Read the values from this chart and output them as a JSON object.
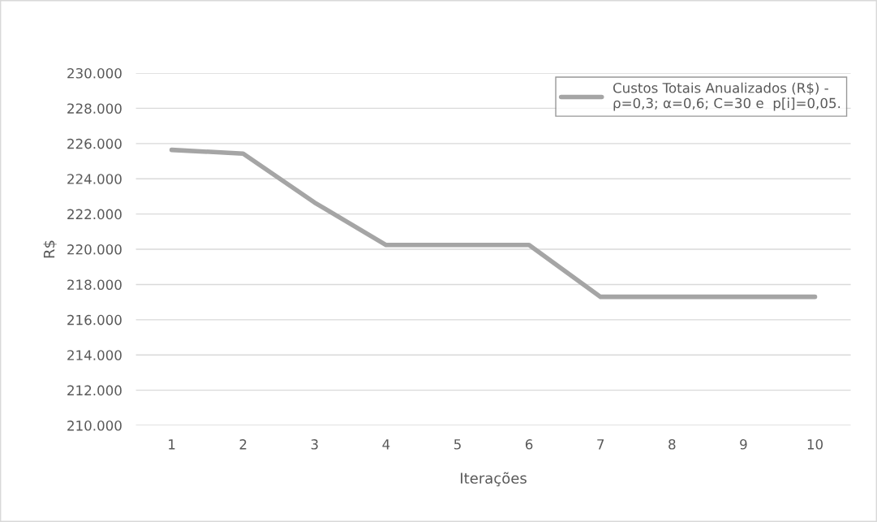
{
  "chart_data": {
    "type": "line",
    "xlabel": "Iterações",
    "ylabel": "R$",
    "categories": [
      "1",
      "2",
      "3",
      "4",
      "5",
      "6",
      "7",
      "8",
      "9",
      "10"
    ],
    "series": [
      {
        "name": "Custos Totais Anualizados (R$) -\nρ=0,3; α=0,6; C=30 e  p[i]=0,05.",
        "color": "#a5a5a5",
        "values": [
          225640,
          225430,
          222650,
          220240,
          220240,
          220240,
          217300,
          217300,
          217300,
          217300
        ]
      }
    ],
    "ylim": [
      210000,
      230000
    ],
    "yticks": [
      {
        "value": 210000,
        "label": "210.000"
      },
      {
        "value": 212000,
        "label": "212.000"
      },
      {
        "value": 214000,
        "label": "214.000"
      },
      {
        "value": 216000,
        "label": "216.000"
      },
      {
        "value": 218000,
        "label": "218.000"
      },
      {
        "value": 220000,
        "label": "220.000"
      },
      {
        "value": 222000,
        "label": "222.000"
      },
      {
        "value": 224000,
        "label": "224.000"
      },
      {
        "value": 226000,
        "label": "226.000"
      },
      {
        "value": 228000,
        "label": "228.000"
      },
      {
        "value": 230000,
        "label": "230.000"
      }
    ],
    "grid": "y",
    "legend": "top right",
    "marker": "none",
    "line_style": "solid"
  }
}
